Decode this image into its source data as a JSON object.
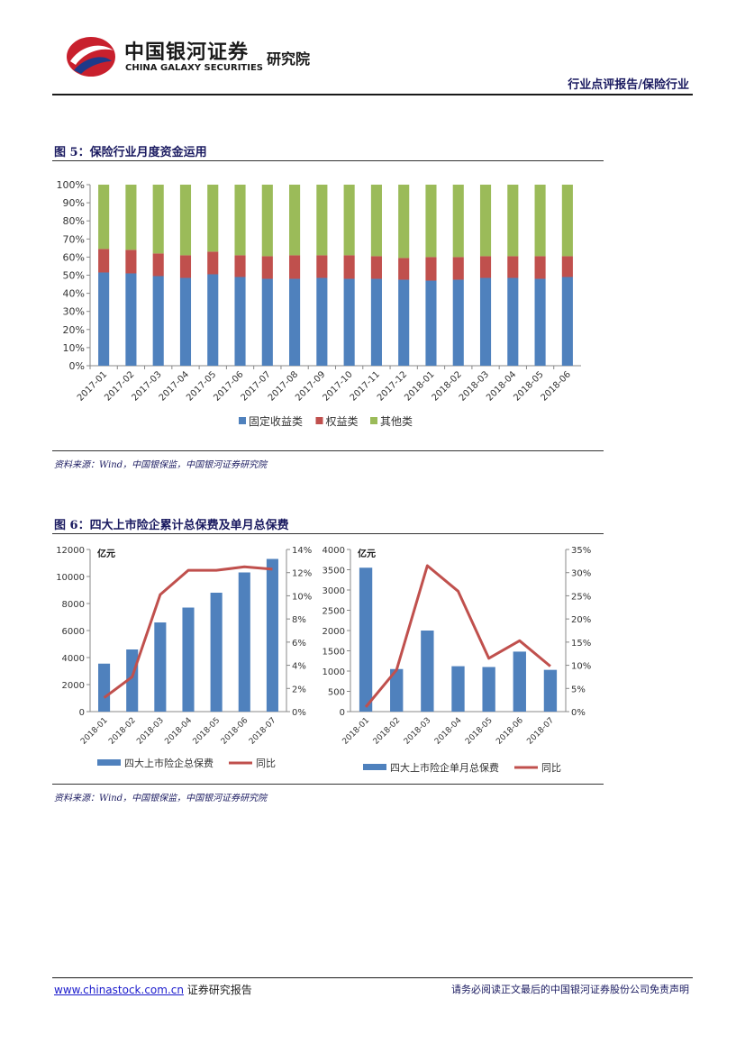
{
  "header": {
    "brand_cn": "中国银河证券",
    "brand_en": "CHINA GALAXY SECURITIES",
    "institute": "研究院",
    "section": "行业点评报告/保险行业"
  },
  "figures": [
    {
      "title": "图 5：保险行业月度资金运用",
      "source": "资料来源：Wind，中国银保监，中国银河证券研究院"
    },
    {
      "title": "图 6：四大上市险企累计总保费及单月总保费",
      "source": "资料来源：Wind，中国银保监，中国银河证券研究院"
    }
  ],
  "chart_data": [
    {
      "type": "bar",
      "stacked": true,
      "categories": [
        "2017-01",
        "2017-02",
        "2017-03",
        "2017-04",
        "2017-05",
        "2017-06",
        "2017-07",
        "2017-08",
        "2017-09",
        "2017-10",
        "2017-11",
        "2017-12",
        "2018-01",
        "2018-02",
        "2018-03",
        "2018-04",
        "2018-05",
        "2018-06"
      ],
      "series": [
        {
          "name": "固定收益类",
          "color": "#4f81bd",
          "values": [
            51.5,
            51.0,
            49.5,
            48.5,
            50.5,
            49.0,
            48.0,
            48.0,
            48.5,
            48.0,
            48.0,
            47.5,
            47.0,
            47.5,
            48.5,
            48.5,
            48.0,
            49.0
          ]
        },
        {
          "name": "权益类",
          "color": "#c0504d",
          "values": [
            13.0,
            13.0,
            12.5,
            12.5,
            12.5,
            12.0,
            12.5,
            13.0,
            12.5,
            13.0,
            12.5,
            12.0,
            13.0,
            12.5,
            12.0,
            12.0,
            12.5,
            11.5
          ]
        },
        {
          "name": "其他类",
          "color": "#9bbb59",
          "values": [
            35.5,
            36.0,
            38.0,
            39.0,
            37.0,
            39.0,
            39.5,
            39.0,
            39.0,
            39.0,
            39.5,
            40.5,
            40.0,
            40.0,
            39.5,
            39.5,
            39.5,
            39.5
          ]
        }
      ],
      "ylim": [
        0,
        100
      ],
      "yticks": [
        "0%",
        "10%",
        "20%",
        "30%",
        "40%",
        "50%",
        "60%",
        "70%",
        "80%",
        "90%",
        "100%"
      ],
      "legend": "bottom"
    },
    {
      "type": "bar+line",
      "unit_label": "亿元",
      "categories": [
        "2018-01",
        "2018-02",
        "2018-03",
        "2018-04",
        "2018-05",
        "2018-06",
        "2018-07"
      ],
      "bars": {
        "name": "四大上市险企总保费",
        "color": "#4f81bd",
        "values": [
          3550,
          4600,
          6600,
          7700,
          8800,
          10300,
          11300
        ]
      },
      "line": {
        "name": "同比",
        "color": "#c0504d",
        "values": [
          1.2,
          3.0,
          10.1,
          12.2,
          12.2,
          12.5,
          12.3
        ]
      },
      "y_left": {
        "lim": [
          0,
          12000
        ],
        "ticks": [
          "0",
          "2000",
          "4000",
          "6000",
          "8000",
          "10000",
          "12000"
        ]
      },
      "y_right": {
        "lim": [
          0,
          14
        ],
        "ticks": [
          "0%",
          "2%",
          "4%",
          "6%",
          "8%",
          "10%",
          "12%",
          "14%"
        ]
      },
      "legend": "bottom"
    },
    {
      "type": "bar+line",
      "unit_label": "亿元",
      "categories": [
        "2018-01",
        "2018-02",
        "2018-03",
        "2018-04",
        "2018-05",
        "2018-06",
        "2018-07"
      ],
      "bars": {
        "name": "四大上市险企单月总保费",
        "color": "#4f81bd",
        "values": [
          3550,
          1050,
          2000,
          1120,
          1100,
          1480,
          1030
        ]
      },
      "line": {
        "name": "同比",
        "color": "#c0504d",
        "values": [
          1.0,
          9.0,
          31.5,
          26.0,
          11.5,
          15.3,
          9.8
        ]
      },
      "y_left": {
        "lim": [
          0,
          4000
        ],
        "ticks": [
          "0",
          "500",
          "1000",
          "1500",
          "2000",
          "2500",
          "3000",
          "3500",
          "4000"
        ]
      },
      "y_right": {
        "lim": [
          0,
          35
        ],
        "ticks": [
          "0%",
          "5%",
          "10%",
          "15%",
          "20%",
          "25%",
          "30%",
          "35%"
        ]
      },
      "legend": "bottom"
    }
  ],
  "footer": {
    "link": "www.chinastock.com.cn",
    "left_text": " 证券研究报告",
    "right_text": "请务必阅读正文最后的中国银河证券股份公司免责声明"
  }
}
